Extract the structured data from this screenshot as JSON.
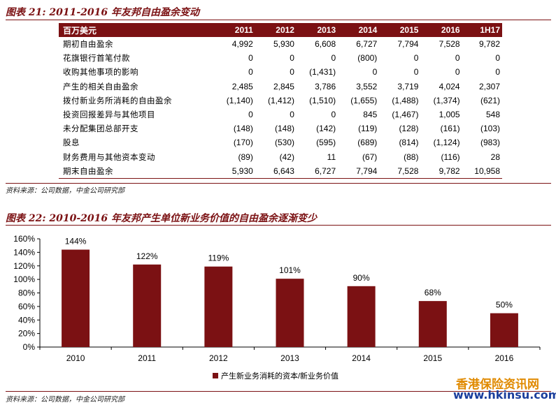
{
  "table_section": {
    "title": "图表 21: 2011-2016 年友邦自由盈余变动",
    "source": "资料来源：公司数据，中金公司研究部",
    "columns": [
      "百万美元",
      "2011",
      "2012",
      "2013",
      "2014",
      "2015",
      "2016",
      "1H17"
    ],
    "rows": [
      [
        "期初自由盈余",
        "4,992",
        "5,930",
        "6,608",
        "6,727",
        "7,794",
        "7,528",
        "9,782"
      ],
      [
        "花旗银行首笔付款",
        "0",
        "0",
        "0",
        "(800)",
        "0",
        "0",
        "0"
      ],
      [
        "收购其他事项的影响",
        "0",
        "0",
        "(1,431)",
        "0",
        "0",
        "0",
        "0"
      ],
      [
        "产生的相关自由盈余",
        "2,485",
        "2,845",
        "3,786",
        "3,552",
        "3,719",
        "4,024",
        "2,307"
      ],
      [
        "拨付新业务所消耗的自由盈余",
        "(1,140)",
        "(1,412)",
        "(1,510)",
        "(1,655)",
        "(1,488)",
        "(1,374)",
        "(621)"
      ],
      [
        "投资回报差异与其他项目",
        "0",
        "0",
        "0",
        "845",
        "(1,467)",
        "1,005",
        "548"
      ],
      [
        "未分配集团总部开支",
        "(148)",
        "(148)",
        "(142)",
        "(119)",
        "(128)",
        "(161)",
        "(103)"
      ],
      [
        "股息",
        "(170)",
        "(530)",
        "(595)",
        "(689)",
        "(814)",
        "(1,124)",
        "(983)"
      ],
      [
        "财务费用与其他资本变动",
        "(89)",
        "(42)",
        "11",
        "(67)",
        "(88)",
        "(116)",
        "28"
      ],
      [
        "期末自由盈余",
        "5,930",
        "6,643",
        "6,727",
        "7,794",
        "7,528",
        "9,782",
        "10,958"
      ]
    ]
  },
  "chart_section": {
    "title": "图表 22: 2010-2016 年友邦产生单位新业务价值的自由盈余逐渐变少",
    "source": "资料来源：公司数据，中金公司研究部"
  },
  "watermark": {
    "line1": "香港保险资讯网",
    "line2": "www.hkinsu.com"
  },
  "colors": {
    "accent": "#7b1113",
    "bar": "#7b1113"
  },
  "chart_data": {
    "type": "bar",
    "categories": [
      "2010",
      "2011",
      "2012",
      "2013",
      "2014",
      "2015",
      "2016"
    ],
    "series": [
      {
        "name": "产生新业务消耗的资本/新业务价值",
        "values": [
          144,
          122,
          119,
          101,
          90,
          68,
          50
        ]
      }
    ],
    "data_labels": [
      "144%",
      "122%",
      "119%",
      "101%",
      "90%",
      "68%",
      "50%"
    ],
    "yticks": [
      "0%",
      "20%",
      "40%",
      "60%",
      "80%",
      "100%",
      "120%",
      "140%",
      "160%"
    ],
    "ylim": [
      0,
      160
    ],
    "legend_position": "bottom",
    "grid": false
  }
}
